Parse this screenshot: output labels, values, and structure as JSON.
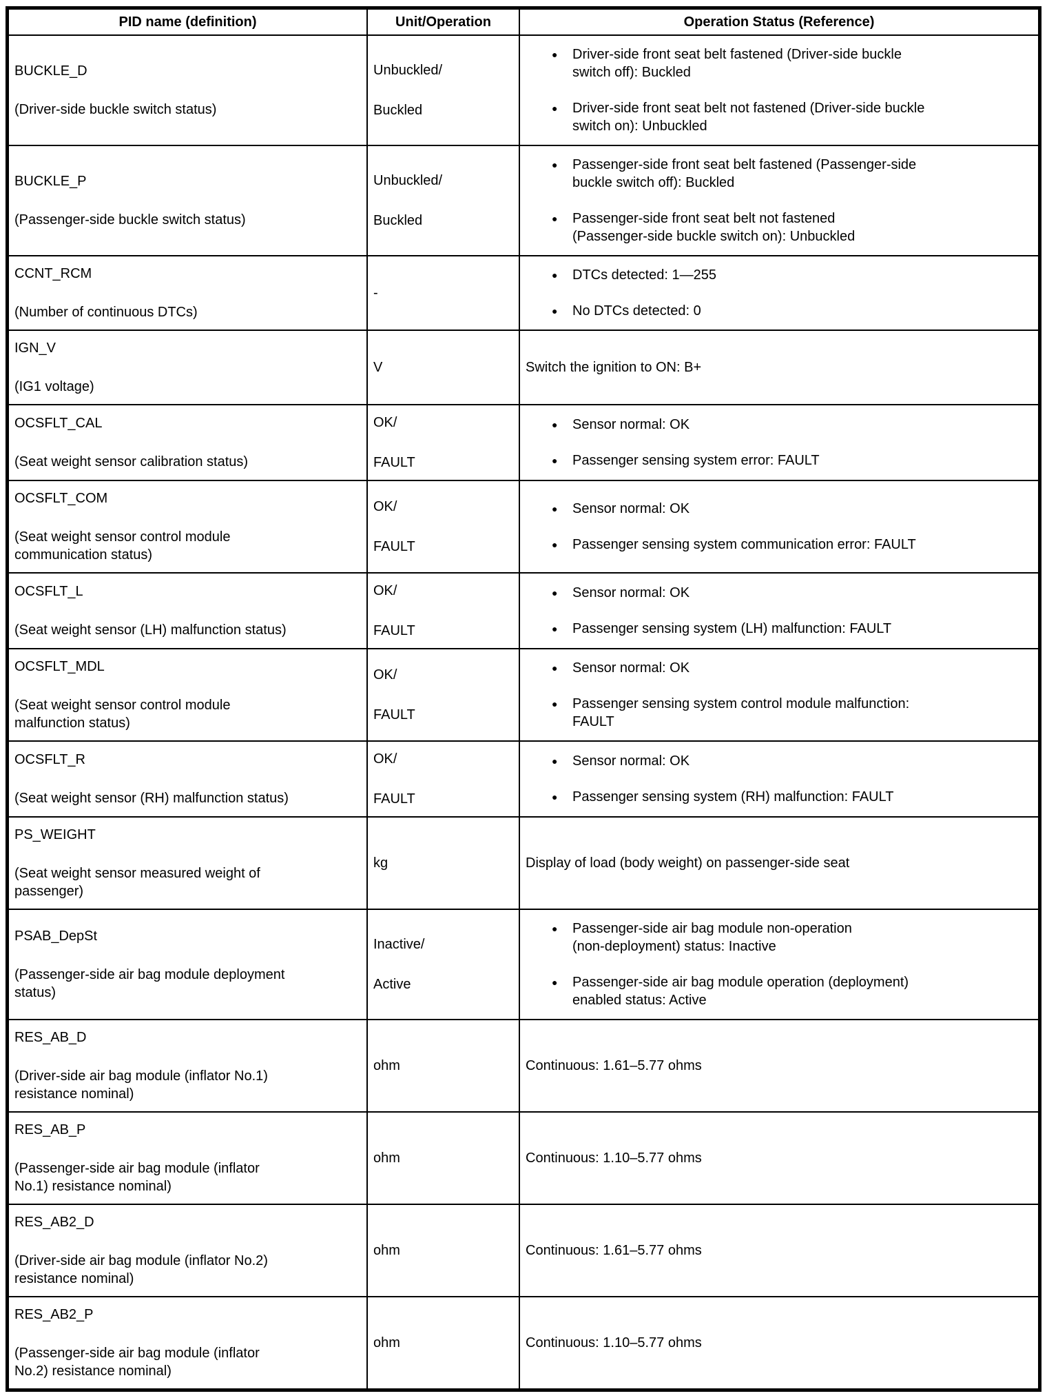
{
  "table": {
    "headers": [
      "PID name (definition)",
      "Unit/Operation",
      "Operation Status (Reference)"
    ],
    "bullet_icon": "●",
    "rows": [
      {
        "pid": "BUCKLE_D",
        "definition": "(Driver-side buckle switch status)",
        "unit": [
          "Unbuckled/",
          "Buckled"
        ],
        "status_type": "bullets",
        "status": [
          "Driver-side front seat belt fastened (Driver-side buckle\nswitch off): Buckled",
          "Driver-side front seat belt not fastened (Driver-side buckle\nswitch on): Unbuckled"
        ]
      },
      {
        "pid": "BUCKLE_P",
        "definition": "(Passenger-side buckle switch status)",
        "unit": [
          "Unbuckled/",
          "Buckled"
        ],
        "status_type": "bullets",
        "status": [
          "Passenger-side front seat belt fastened (Passenger-side\nbuckle switch off): Buckled",
          "Passenger-side front seat belt not fastened\n(Passenger-side buckle switch on): Unbuckled"
        ]
      },
      {
        "pid": "CCNT_RCM",
        "definition": "(Number of continuous DTCs)",
        "unit": [
          "-"
        ],
        "status_type": "bullets",
        "status": [
          "DTCs detected: 1—255",
          "No DTCs detected: 0"
        ]
      },
      {
        "pid": "IGN_V",
        "definition": "(IG1 voltage)",
        "unit": [
          "V"
        ],
        "status_type": "text",
        "status": "Switch the ignition to ON: B+"
      },
      {
        "pid": "OCSFLT_CAL",
        "definition": "(Seat weight sensor calibration status)",
        "unit": [
          "OK/",
          "FAULT"
        ],
        "status_type": "bullets",
        "status": [
          "Sensor normal: OK",
          "Passenger sensing system error: FAULT"
        ]
      },
      {
        "pid": "OCSFLT_COM",
        "definition": "(Seat weight sensor control module\ncommunication status)",
        "unit": [
          "OK/",
          "FAULT"
        ],
        "status_type": "bullets",
        "status": [
          "Sensor normal: OK",
          "Passenger sensing system communication error: FAULT"
        ]
      },
      {
        "pid": "OCSFLT_L",
        "definition": "(Seat weight sensor (LH) malfunction status)",
        "unit": [
          "OK/",
          "FAULT"
        ],
        "status_type": "bullets",
        "status": [
          "Sensor normal: OK",
          "Passenger sensing system (LH) malfunction: FAULT"
        ]
      },
      {
        "pid": "OCSFLT_MDL",
        "definition": "(Seat weight sensor control module\nmalfunction status)",
        "unit": [
          "OK/",
          "FAULT"
        ],
        "status_type": "bullets",
        "status": [
          "Sensor normal: OK",
          "Passenger sensing system control module malfunction:\nFAULT"
        ]
      },
      {
        "pid": "OCSFLT_R",
        "definition": "(Seat weight sensor (RH) malfunction status)",
        "unit": [
          "OK/",
          "FAULT"
        ],
        "status_type": "bullets",
        "status": [
          "Sensor normal: OK",
          "Passenger sensing system (RH) malfunction: FAULT"
        ]
      },
      {
        "pid": "PS_WEIGHT",
        "definition": "(Seat weight sensor measured weight of\npassenger)",
        "unit": [
          "kg"
        ],
        "status_type": "text",
        "status": "Display of load (body weight) on passenger-side seat"
      },
      {
        "pid": "PSAB_DepSt",
        "definition": "(Passenger-side air bag module deployment\nstatus)",
        "unit": [
          "Inactive/",
          "Active"
        ],
        "status_type": "bullets",
        "status": [
          "Passenger-side air bag module non-operation\n(non-deployment) status: Inactive",
          "Passenger-side air bag module operation (deployment)\nenabled status: Active"
        ]
      },
      {
        "pid": "RES_AB_D",
        "definition": "(Driver-side air bag module (inflator No.1)\nresistance nominal)",
        "unit": [
          "ohm"
        ],
        "status_type": "text",
        "status": "Continuous: 1.61–5.77 ohms"
      },
      {
        "pid": "RES_AB_P",
        "definition": "(Passenger-side air bag module (inflator\nNo.1) resistance nominal)",
        "unit": [
          "ohm"
        ],
        "status_type": "text",
        "status": "Continuous: 1.10–5.77 ohms"
      },
      {
        "pid": "RES_AB2_D",
        "definition": "(Driver-side air bag module (inflator No.2)\nresistance nominal)",
        "unit": [
          "ohm"
        ],
        "status_type": "text",
        "status": "Continuous: 1.61–5.77 ohms"
      },
      {
        "pid": "RES_AB2_P",
        "definition": "(Passenger-side air bag module (inflator\nNo.2) resistance nominal)",
        "unit": [
          "ohm"
        ],
        "status_type": "text",
        "status": "Continuous: 1.10–5.77 ohms"
      }
    ]
  }
}
